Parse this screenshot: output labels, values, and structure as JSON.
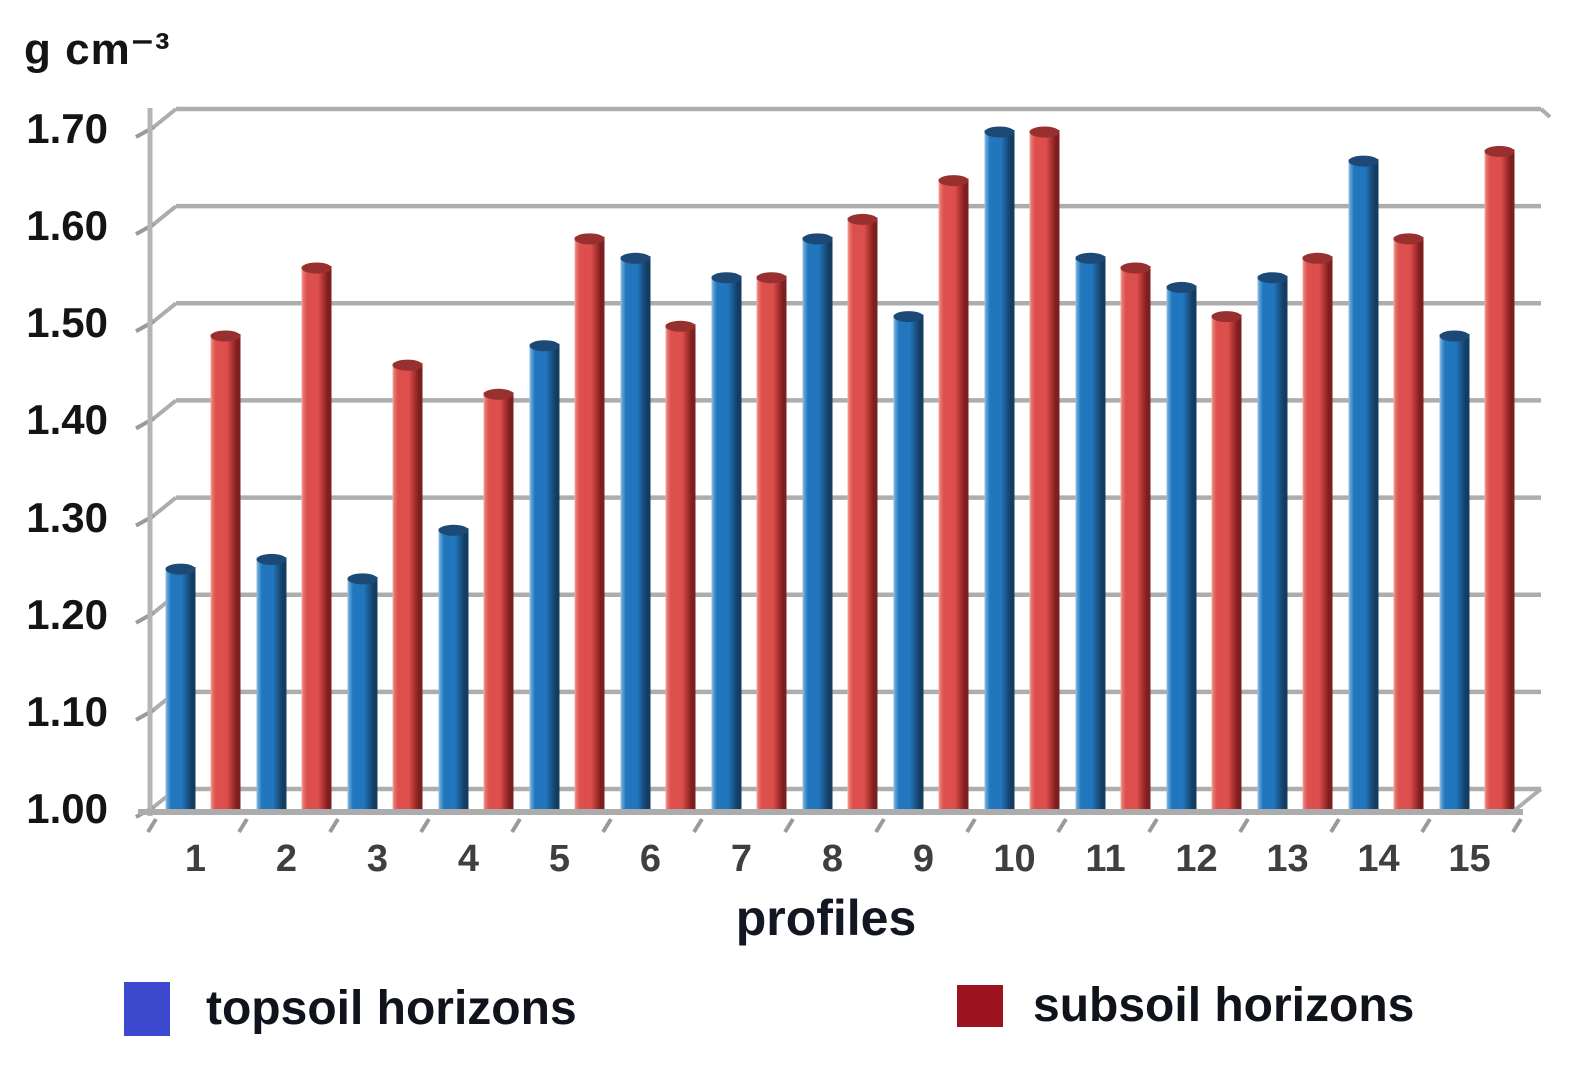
{
  "chart_data": {
    "type": "bar",
    "title_unit": "g cm⁻³",
    "xlabel": "profiles",
    "categories": [
      "1",
      "2",
      "3",
      "4",
      "5",
      "6",
      "7",
      "8",
      "9",
      "10",
      "11",
      "12",
      "13",
      "14",
      "15"
    ],
    "yticks": [
      "1.00",
      "1.10",
      "1.20",
      "1.30",
      "1.40",
      "1.50",
      "1.60",
      "1.70"
    ],
    "ylim": [
      1.0,
      1.7
    ],
    "grid": true,
    "legend_position": "bottom",
    "series": [
      {
        "name": "topsoil horizons",
        "values": [
          1.25,
          1.26,
          1.24,
          1.29,
          1.48,
          1.57,
          1.55,
          1.59,
          1.51,
          1.7,
          1.57,
          1.54,
          1.55,
          1.67,
          1.49
        ],
        "legend_color": "#3C49CF",
        "bar_highlight": "#9CC4E4",
        "bar_light": "#5EA3D6",
        "bar_body": "#2176BE",
        "bar_shade": "#1A578C",
        "bar_edge": "#133C61",
        "cap_color": "#1D4977"
      },
      {
        "name": "subsoil horizons",
        "values": [
          1.49,
          1.56,
          1.46,
          1.43,
          1.59,
          1.5,
          1.55,
          1.61,
          1.65,
          1.7,
          1.56,
          1.51,
          1.57,
          1.59,
          1.68
        ],
        "legend_color": "#9E1320",
        "bar_highlight": "#F2B4AC",
        "bar_light": "#E9766F",
        "bar_body": "#DC4F4C",
        "bar_shade": "#AE3331",
        "bar_edge": "#7C1F1E",
        "cap_color": "#993030"
      }
    ],
    "grid_color": "#ADADAD",
    "axis_color": "#B5B5B5"
  }
}
